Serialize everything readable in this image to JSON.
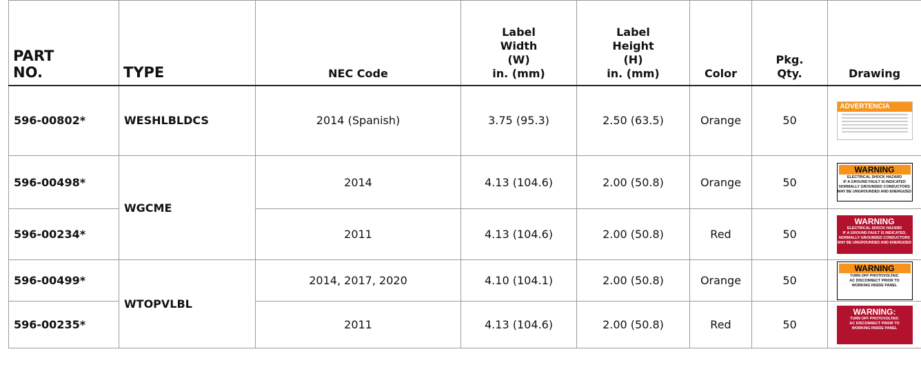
{
  "table": {
    "header": [
      "PART\nNO.",
      "TYPE",
      "NEC Code",
      "Label\nWidth\n(W)\nin. (mm)",
      "Label\nHeight\n(H)\nin. (mm)",
      "Color",
      "Pkg.\nQty.",
      "Drawing"
    ],
    "rows": [
      {
        "part": "596-00802*",
        "type": "WESHLBLDCS",
        "nec": "2014 (Spanish)",
        "width": "3.75 (95.3)",
        "height": "2.50 (63.5)",
        "color": "Orange",
        "qty": "50",
        "drawing": {
          "style": "spanish",
          "title": "ADVERTENCIA",
          "lines": []
        }
      },
      {
        "part": "596-00498*",
        "type": "WGCME",
        "nec": "2014",
        "width": "4.13 (104.6)",
        "height": "2.00 (50.8)",
        "color": "Orange",
        "qty": "50",
        "drawing": {
          "style": "orange",
          "title": "WARNING",
          "lines": [
            "ELECTRICAL SHOCK HAZARD",
            "IF A GROUND FAULT IS INDICATED",
            "NORMALLY GROUNDED CONDUCTORS",
            "MAY BE UNGROUNDED AND ENERGIZED"
          ]
        }
      },
      {
        "part": "596-00234*",
        "nec": "2011",
        "width": "4.13 (104.6)",
        "height": "2.00 (50.8)",
        "color": "Red",
        "qty": "50",
        "drawing": {
          "style": "red",
          "title": "WARNING",
          "lines": [
            "ELECTRICAL SHOCK HAZARD",
            "IF A GROUND FAULT IS INDICATED,",
            "NORMALLY GROUNDED CONDUCTORS",
            "MAY BE UNGROUNDED AND ENERGIZED"
          ]
        }
      },
      {
        "part": "596-00499*",
        "type": "WTOPVLBL",
        "nec": "2014, 2017, 2020",
        "width": "4.10 (104.1)",
        "height": "2.00 (50.8)",
        "color": "Orange",
        "qty": "50",
        "drawing": {
          "style": "orange",
          "title": "WARNING",
          "lines": [
            "TURN OFF PHOTOVOLTAIC",
            "AC DISCONNECT PRIOR TO",
            "WORKING INSIDE PANEL"
          ]
        }
      },
      {
        "part": "596-00235*",
        "nec": "2011",
        "width": "4.13 (104.6)",
        "height": "2.00 (50.8)",
        "color": "Red",
        "qty": "50",
        "drawing": {
          "style": "red",
          "title": "WARNING:",
          "lines": [
            "TURN OFF PHOTOVOLTAIC",
            "AC DISCONNECT PRIOR TO",
            "WORKING INSIDE PANEL"
          ]
        }
      }
    ]
  }
}
